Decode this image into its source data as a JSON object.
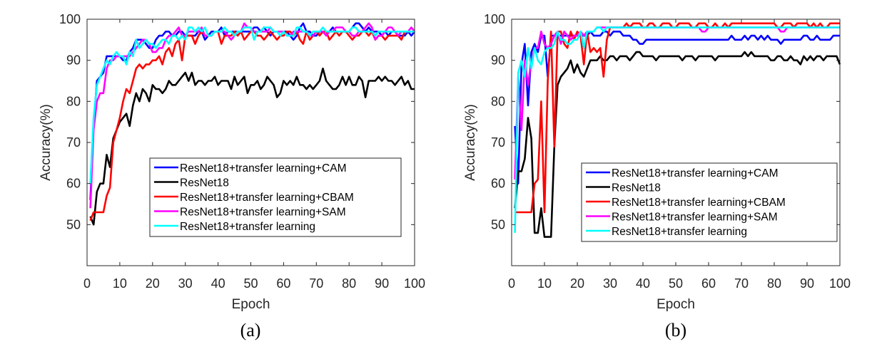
{
  "chart_data": [
    {
      "type": "line",
      "panel": "(a)",
      "xlabel": "Epoch",
      "ylabel": "Accuracy(%)",
      "xlim": [
        0,
        100
      ],
      "ylim": [
        40,
        100
      ],
      "xticks": [
        "0",
        "10",
        "20",
        "30",
        "40",
        "50",
        "60",
        "70",
        "80",
        "90",
        "100"
      ],
      "yticks": [
        "50",
        "60",
        "70",
        "80",
        "90",
        "100"
      ],
      "legend_position": "lower-right",
      "grid": false,
      "series": [
        {
          "name": "ResNet18+transfer learning+CAM",
          "color": "#0000ff",
          "values": [
            56,
            74,
            85,
            86,
            87,
            91,
            91,
            91,
            91,
            91,
            90,
            90,
            92,
            93,
            95,
            95,
            95,
            94,
            93,
            93,
            95,
            96,
            96,
            97,
            97,
            96,
            96,
            97,
            97,
            96,
            96,
            96,
            96,
            97,
            97,
            95,
            96,
            97,
            97,
            97,
            98,
            96,
            97,
            97,
            97,
            97,
            97,
            97,
            97,
            97,
            98,
            98,
            97,
            98,
            97,
            96,
            97,
            97,
            97,
            97,
            97,
            96,
            95,
            96,
            98,
            99,
            97,
            97,
            96,
            96,
            97,
            97,
            97,
            97,
            98,
            97,
            97,
            97,
            97,
            97,
            98,
            99,
            99,
            98,
            97,
            98,
            97,
            97,
            97,
            96,
            97,
            96,
            97,
            97,
            96,
            96,
            96,
            97,
            96,
            97
          ]
        },
        {
          "name": "ResNet18",
          "color": "#000000",
          "values": [
            52,
            50,
            58,
            60,
            60,
            67,
            64,
            71,
            73,
            75,
            76,
            77,
            74,
            79,
            82,
            80,
            83,
            82,
            80,
            84,
            83,
            83,
            82,
            83,
            85,
            84,
            84,
            85,
            86,
            87,
            85,
            87,
            84,
            85,
            85,
            84,
            85,
            85,
            86,
            84,
            85,
            85,
            85,
            83,
            86,
            84,
            85,
            86,
            82,
            84,
            84,
            85,
            83,
            84,
            86,
            85,
            84,
            81,
            82,
            85,
            84,
            85,
            84,
            86,
            84,
            84,
            83,
            84,
            83,
            84,
            85,
            88,
            85,
            84,
            83,
            83,
            84,
            86,
            84,
            86,
            84,
            84,
            86,
            85,
            81,
            85,
            85,
            85,
            86,
            85,
            86,
            85,
            85,
            84,
            85,
            86,
            84,
            85,
            83,
            83
          ]
        },
        {
          "name": "ResNet18+transfer learning+CBAM",
          "color": "#ff0000",
          "values": [
            51,
            53,
            53,
            53,
            53,
            57,
            59,
            70,
            73,
            76,
            80,
            83,
            82,
            85,
            88,
            89,
            88,
            89,
            89,
            90,
            90,
            91,
            89,
            92,
            93,
            91,
            94,
            95,
            90,
            96,
            96,
            96,
            94,
            96,
            97,
            96,
            96,
            96,
            97,
            97,
            94,
            96,
            96,
            96,
            97,
            96,
            97,
            95,
            96,
            97,
            97,
            96,
            96,
            95,
            96,
            97,
            96,
            95,
            96,
            96,
            97,
            97,
            96,
            97,
            95,
            94,
            97,
            95,
            96,
            97,
            96,
            97,
            97,
            95,
            96,
            97,
            96,
            97,
            97,
            96,
            95,
            96,
            96,
            97,
            97,
            96,
            97,
            95,
            96,
            96,
            95,
            96,
            96,
            96,
            96,
            95,
            97,
            97,
            97,
            97
          ]
        },
        {
          "name": "ResNet18+transfer learning+SAM",
          "color": "#ff00ff",
          "values": [
            54,
            73,
            80,
            82,
            82,
            88,
            90,
            90,
            91,
            91,
            91,
            91,
            91,
            92,
            93,
            94,
            95,
            95,
            94,
            92,
            92,
            93,
            93,
            95,
            96,
            96,
            97,
            98,
            96,
            96,
            97,
            97,
            97,
            97,
            98,
            96,
            96,
            96,
            97,
            97,
            97,
            97,
            96,
            95,
            96,
            97,
            97,
            99,
            98,
            98,
            97,
            97,
            97,
            97,
            97,
            98,
            97,
            97,
            97,
            97,
            96,
            96,
            97,
            97,
            97,
            97,
            97,
            96,
            96,
            97,
            97,
            97,
            96,
            97,
            97,
            98,
            98,
            98,
            97,
            97,
            96,
            96,
            97,
            97,
            98,
            99,
            98,
            95,
            96,
            96,
            97,
            98,
            98,
            97,
            96,
            97,
            97,
            97,
            98,
            97
          ]
        },
        {
          "name": "ResNet18+transfer learning",
          "color": "#00ffff",
          "values": [
            60,
            76,
            84,
            86,
            88,
            90,
            89,
            91,
            92,
            91,
            91,
            89,
            92,
            91,
            95,
            93,
            94,
            95,
            94,
            94,
            93,
            94,
            95,
            95,
            94,
            96,
            96,
            95,
            96,
            95,
            98,
            98,
            97,
            98,
            97,
            98,
            96,
            96,
            97,
            97,
            97,
            98,
            97,
            97,
            96,
            97,
            97,
            98,
            98,
            98,
            95,
            97,
            97,
            98,
            98,
            98,
            97,
            97,
            96,
            97,
            96,
            96,
            96,
            98,
            98,
            97,
            97,
            96,
            97,
            97,
            97,
            98,
            97,
            97,
            97,
            97,
            97,
            97,
            97,
            97,
            98,
            98,
            97,
            97,
            97,
            97,
            97,
            96,
            97,
            97,
            97,
            97,
            97,
            97,
            97,
            97,
            97,
            97,
            97,
            97
          ]
        }
      ]
    },
    {
      "type": "line",
      "panel": "(b)",
      "xlabel": "Epoch",
      "ylabel": "Accuracy(%)",
      "xlim": [
        0,
        100
      ],
      "ylim": [
        40,
        100
      ],
      "xticks": [
        "0",
        "10",
        "20",
        "30",
        "40",
        "50",
        "60",
        "70",
        "80",
        "90",
        "100"
      ],
      "yticks": [
        "50",
        "60",
        "70",
        "80",
        "90",
        "100"
      ],
      "legend_position": "lower-right",
      "grid": false,
      "series": [
        {
          "name": "ResNet18+transfer learning+CAM",
          "color": "#0000ff",
          "values": [
            74,
            60,
            89,
            94,
            79,
            92,
            94,
            92,
            96,
            96,
            86,
            96,
            96,
            96,
            96,
            96,
            96,
            96,
            96,
            96,
            96,
            96,
            96,
            97,
            96,
            96,
            96,
            97,
            97,
            96,
            97,
            97,
            97,
            96,
            96,
            96,
            95,
            95,
            94,
            94,
            95,
            95,
            95,
            95,
            95,
            95,
            95,
            95,
            95,
            95,
            95,
            95,
            95,
            95,
            95,
            95,
            95,
            95,
            95,
            95,
            95,
            95,
            95,
            95,
            95,
            95,
            96,
            95,
            95,
            95,
            96,
            95,
            96,
            96,
            95,
            96,
            95,
            96,
            95,
            95,
            95,
            94,
            95,
            95,
            95,
            95,
            95,
            95,
            96,
            96,
            95,
            95,
            96,
            95,
            95,
            95,
            95,
            96,
            96,
            96
          ]
        },
        {
          "name": "ResNet18",
          "color": "#000000",
          "values": [
            54,
            63,
            63,
            66,
            76,
            71,
            48,
            48,
            54,
            47,
            47,
            47,
            69,
            84,
            86,
            87,
            88,
            90,
            87,
            89,
            87,
            86,
            88,
            90,
            90,
            90,
            91,
            90,
            90,
            91,
            91,
            90,
            91,
            91,
            91,
            90,
            91,
            92,
            92,
            91,
            91,
            91,
            91,
            90,
            91,
            91,
            91,
            91,
            91,
            91,
            91,
            90,
            91,
            91,
            91,
            90,
            91,
            91,
            91,
            91,
            91,
            90,
            91,
            91,
            91,
            91,
            91,
            91,
            91,
            91,
            92,
            91,
            92,
            91,
            91,
            91,
            91,
            91,
            90,
            90,
            91,
            91,
            90,
            90,
            91,
            90,
            90,
            89,
            91,
            90,
            91,
            90,
            91,
            91,
            90,
            91,
            91,
            91,
            91,
            89
          ]
        },
        {
          "name": "ResNet18+transfer learning+CBAM",
          "color": "#ff0000",
          "values": [
            53,
            53,
            53,
            53,
            53,
            53,
            60,
            61,
            80,
            53,
            85,
            97,
            69,
            97,
            97,
            94,
            93,
            97,
            95,
            97,
            96,
            89,
            97,
            92,
            93,
            92,
            93,
            86,
            95,
            98,
            98,
            98,
            98,
            98,
            99,
            98,
            99,
            99,
            99,
            98,
            98,
            99,
            99,
            98,
            98,
            99,
            99,
            99,
            98,
            98,
            99,
            99,
            99,
            99,
            98,
            98,
            99,
            99,
            99,
            98,
            98,
            99,
            98,
            98,
            99,
            98,
            99,
            99,
            99,
            99,
            99,
            99,
            99,
            99,
            99,
            99,
            99,
            99,
            99,
            99,
            98,
            98,
            99,
            99,
            99,
            98,
            99,
            99,
            99,
            99,
            98,
            99,
            98,
            99,
            98,
            98,
            99,
            99,
            99,
            99
          ]
        },
        {
          "name": "ResNet18+transfer learning+SAM",
          "color": "#ff00ff",
          "values": [
            61,
            86,
            73,
            90,
            84,
            90,
            93,
            93,
            97,
            94,
            93,
            94,
            96,
            97,
            94,
            97,
            96,
            95,
            96,
            96,
            97,
            96,
            97,
            97,
            97,
            98,
            98,
            98,
            98,
            98,
            98,
            98,
            98,
            98,
            98,
            98,
            98,
            98,
            98,
            98,
            98,
            98,
            98,
            98,
            98,
            98,
            98,
            98,
            98,
            98,
            98,
            98,
            98,
            98,
            98,
            98,
            98,
            97,
            97,
            98,
            98,
            98,
            98,
            98,
            98,
            98,
            98,
            98,
            98,
            98,
            98,
            98,
            98,
            98,
            98,
            98,
            98,
            98,
            98,
            98,
            98,
            97,
            97,
            98,
            98,
            98,
            98,
            98,
            98,
            98,
            98,
            98,
            98,
            98,
            98,
            98,
            98,
            98,
            98,
            98
          ]
        },
        {
          "name": "ResNet18+transfer learning",
          "color": "#00ffff",
          "values": [
            48,
            87,
            90,
            86,
            93,
            88,
            93,
            90,
            89,
            92,
            93,
            93,
            94,
            97,
            95,
            95,
            94,
            94,
            95,
            95,
            97,
            93,
            97,
            97,
            97,
            98,
            98,
            97,
            98,
            98,
            98,
            98,
            98,
            98,
            98,
            98,
            98,
            98,
            98,
            98,
            98,
            98,
            98,
            98,
            98,
            98,
            98,
            98,
            98,
            98,
            98,
            98,
            98,
            98,
            98,
            98,
            98,
            98,
            98,
            98,
            98,
            98,
            98,
            98,
            98,
            98,
            98,
            98,
            98,
            98,
            98,
            98,
            98,
            98,
            98,
            98,
            98,
            98,
            98,
            98,
            98,
            98,
            98,
            98,
            98,
            98,
            98,
            98,
            98,
            98,
            98,
            98,
            98,
            98,
            98,
            98,
            98,
            98,
            98,
            98
          ]
        }
      ]
    }
  ]
}
